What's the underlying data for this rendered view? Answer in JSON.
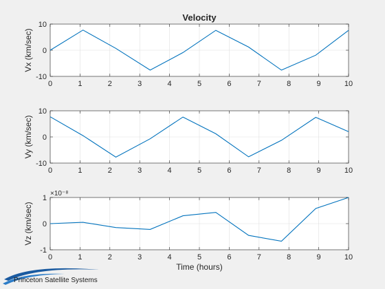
{
  "figure": {
    "background": "#f0f0f0",
    "line_color": "#0072bd",
    "logo_text": "Princeton Satellite Systems",
    "logo_color": "#1a5aa0"
  },
  "chart_data": [
    {
      "type": "line",
      "title": "Velocity",
      "xlabel": "",
      "ylabel": "Vx (km/sec)",
      "xlim": [
        0,
        10
      ],
      "ylim": [
        -10,
        10
      ],
      "xticks": [
        "0",
        "1",
        "2",
        "3",
        "4",
        "5",
        "6",
        "7",
        "8",
        "9",
        "10"
      ],
      "yticks": [
        "-10",
        "0",
        "10"
      ],
      "grid": true,
      "exponent": "",
      "series": [
        {
          "x": [
            0,
            1.1,
            2.2,
            3.35,
            4.45,
            5.55,
            6.65,
            7.75,
            8.9,
            10
          ],
          "y": [
            0,
            7.7,
            0.7,
            -7.6,
            -0.9,
            7.6,
            1.2,
            -7.6,
            -1.9,
            7.6
          ]
        }
      ]
    },
    {
      "type": "line",
      "title": "",
      "xlabel": "",
      "ylabel": "Vy (km/sec)",
      "xlim": [
        0,
        10
      ],
      "ylim": [
        -10,
        10
      ],
      "xticks": [
        "0",
        "1",
        "2",
        "3",
        "4",
        "5",
        "6",
        "7",
        "8",
        "9",
        "10"
      ],
      "yticks": [
        "-10",
        "0",
        "10"
      ],
      "grid": true,
      "exponent": "",
      "series": [
        {
          "x": [
            0,
            1.1,
            2.2,
            3.35,
            4.45,
            5.55,
            6.65,
            7.75,
            8.9,
            10
          ],
          "y": [
            7.7,
            0.5,
            -7.7,
            -0.7,
            7.6,
            1.2,
            -7.6,
            -1.3,
            7.5,
            2.0
          ]
        }
      ]
    },
    {
      "type": "line",
      "title": "",
      "xlabel": "Time (hours)",
      "ylabel": "Vz (km/sec)",
      "xlim": [
        0,
        10
      ],
      "ylim": [
        -1,
        1
      ],
      "xticks": [
        "0",
        "1",
        "2",
        "3",
        "4",
        "5",
        "6",
        "7",
        "8",
        "9",
        "10"
      ],
      "yticks": [
        "-1",
        "0",
        "1"
      ],
      "grid": true,
      "exponent": "×10⁻⁸",
      "series": [
        {
          "x": [
            0,
            1.1,
            2.2,
            3.35,
            4.45,
            5.55,
            6.65,
            7.75,
            8.9,
            10
          ],
          "y": [
            0,
            0.05,
            -0.15,
            -0.22,
            0.3,
            0.43,
            -0.45,
            -0.67,
            0.58,
            1.0
          ]
        }
      ]
    }
  ]
}
